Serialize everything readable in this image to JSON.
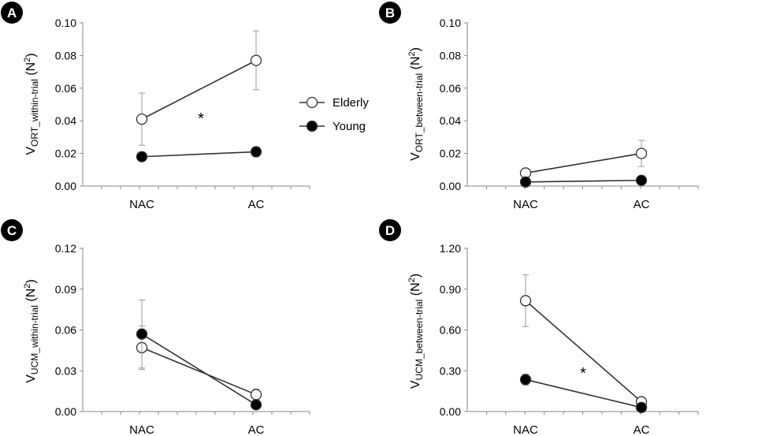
{
  "legend": {
    "placement": "center, between panels A and B",
    "series": [
      {
        "name": "Elderly",
        "marker": "open-circle"
      },
      {
        "name": "Young",
        "marker": "filled-circle"
      }
    ]
  },
  "chart_data": [
    {
      "panel": "A",
      "type": "line",
      "categories": [
        "NAC",
        "AC"
      ],
      "ylabel": {
        "main": "V",
        "sub": "ORT_within-trial",
        "unit": " (N",
        "sup": "2",
        "close": ")"
      },
      "ylim": [
        0,
        0.1
      ],
      "yticks": [
        "0.00",
        "0.02",
        "0.04",
        "0.06",
        "0.08",
        "0.10"
      ],
      "series": [
        {
          "name": "Elderly",
          "values": [
            0.041,
            0.077
          ],
          "error": [
            0.016,
            0.018
          ]
        },
        {
          "name": "Young",
          "values": [
            0.018,
            0.021
          ],
          "error": [
            0.002,
            0.003
          ]
        }
      ],
      "annotation": "*",
      "grid": false
    },
    {
      "panel": "B",
      "type": "line",
      "categories": [
        "NAC",
        "AC"
      ],
      "ylabel": {
        "main": "V",
        "sub": "ORT_between-trial",
        "unit": " (N",
        "sup": "2",
        "close": ")"
      },
      "ylim": [
        0,
        0.1
      ],
      "yticks": [
        "0.00",
        "0.02",
        "0.04",
        "0.06",
        "0.08",
        "0.10"
      ],
      "series": [
        {
          "name": "Elderly",
          "values": [
            0.008,
            0.02
          ],
          "error": [
            0.001,
            0.008
          ]
        },
        {
          "name": "Young",
          "values": [
            0.0025,
            0.0035
          ],
          "error": [
            0.0004,
            0.0005
          ]
        }
      ],
      "annotation": "",
      "grid": false
    },
    {
      "panel": "C",
      "type": "line",
      "categories": [
        "NAC",
        "AC"
      ],
      "ylabel": {
        "main": "V",
        "sub": "UCM_within-trial",
        "unit": " (N",
        "sup": "2",
        "close": ")"
      },
      "ylim": [
        0,
        0.12
      ],
      "yticks": [
        "0.00",
        "0.03",
        "0.06",
        "0.09",
        "0.12"
      ],
      "series": [
        {
          "name": "Elderly",
          "values": [
            0.047,
            0.0125
          ],
          "error": [
            0.016,
            0.004
          ]
        },
        {
          "name": "Young",
          "values": [
            0.057,
            0.005
          ],
          "error": [
            0.025,
            0.001
          ]
        }
      ],
      "annotation": "",
      "grid": false
    },
    {
      "panel": "D",
      "type": "line",
      "categories": [
        "NAC",
        "AC"
      ],
      "ylabel": {
        "main": "V",
        "sub": "UCM_between-trial",
        "unit": " (N",
        "sup": "2",
        "close": ")"
      },
      "ylim": [
        0,
        1.2
      ],
      "yticks": [
        "0.00",
        "0.30",
        "0.60",
        "0.90",
        "1.20"
      ],
      "series": [
        {
          "name": "Elderly",
          "values": [
            0.815,
            0.072
          ],
          "error": [
            0.19,
            0.012
          ]
        },
        {
          "name": "Young",
          "values": [
            0.235,
            0.03
          ],
          "error": [
            0.04,
            0.005
          ]
        }
      ],
      "annotation": "*",
      "grid": false
    }
  ]
}
